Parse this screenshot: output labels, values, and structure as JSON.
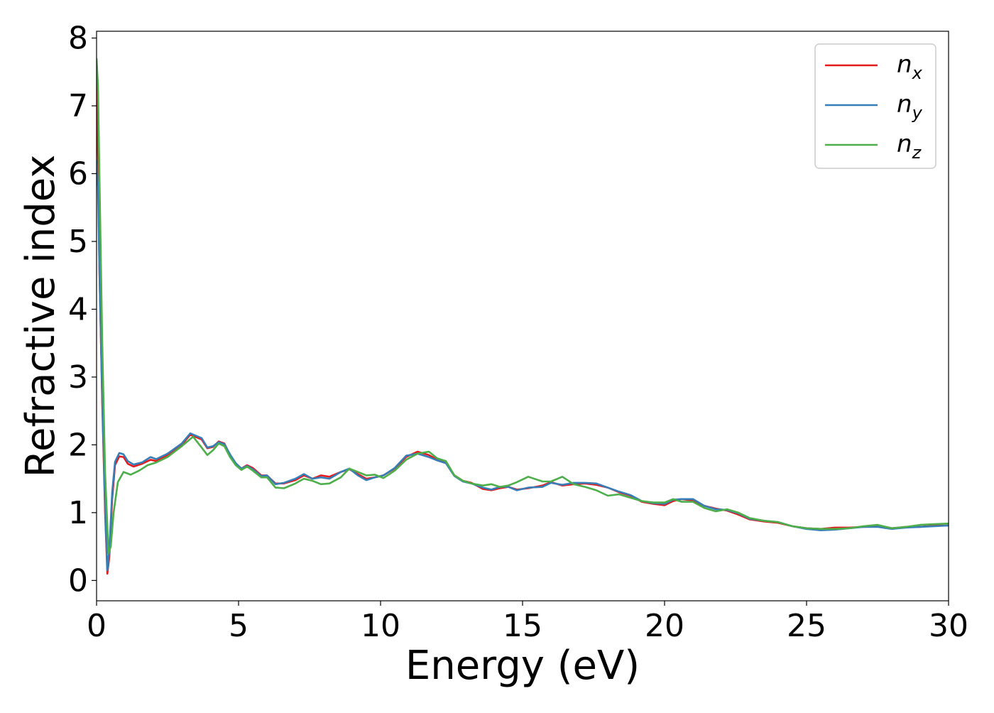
{
  "chart_data": {
    "type": "line",
    "xlabel": "Energy (eV)",
    "ylabel": "Refractive index",
    "xlim": [
      0,
      30
    ],
    "ylim": [
      -0.3,
      8.1
    ],
    "xticks": [
      "0",
      "5",
      "10",
      "15",
      "20",
      "25",
      "30"
    ],
    "yticks": [
      "0",
      "1",
      "2",
      "3",
      "4",
      "5",
      "6",
      "7",
      "8"
    ],
    "grid": false,
    "legend_position": "top-right",
    "series": [
      {
        "name": "n_x",
        "legend_base": "n",
        "legend_sub": "x",
        "color": "#e41a1c",
        "points": [
          [
            0,
            7.6
          ],
          [
            0.05,
            6.2
          ],
          [
            0.1,
            4.6
          ],
          [
            0.2,
            2.6
          ],
          [
            0.3,
            1.0
          ],
          [
            0.38,
            0.1
          ],
          [
            0.45,
            0.35
          ],
          [
            0.55,
            1.2
          ],
          [
            0.65,
            1.7
          ],
          [
            0.8,
            1.83
          ],
          [
            0.95,
            1.82
          ],
          [
            1.1,
            1.72
          ],
          [
            1.3,
            1.68
          ],
          [
            1.6,
            1.72
          ],
          [
            1.9,
            1.78
          ],
          [
            2.1,
            1.76
          ],
          [
            2.5,
            1.85
          ],
          [
            3.0,
            2.0
          ],
          [
            3.3,
            2.15
          ],
          [
            3.7,
            2.08
          ],
          [
            3.9,
            1.95
          ],
          [
            4.1,
            1.97
          ],
          [
            4.3,
            2.05
          ],
          [
            4.5,
            2.02
          ],
          [
            4.7,
            1.85
          ],
          [
            4.9,
            1.72
          ],
          [
            5.1,
            1.65
          ],
          [
            5.3,
            1.7
          ],
          [
            5.5,
            1.66
          ],
          [
            5.8,
            1.55
          ],
          [
            6.0,
            1.55
          ],
          [
            6.3,
            1.43
          ],
          [
            6.6,
            1.43
          ],
          [
            7.0,
            1.48
          ],
          [
            7.3,
            1.55
          ],
          [
            7.6,
            1.5
          ],
          [
            7.9,
            1.55
          ],
          [
            8.2,
            1.53
          ],
          [
            8.6,
            1.6
          ],
          [
            8.9,
            1.64
          ],
          [
            9.2,
            1.57
          ],
          [
            9.5,
            1.5
          ],
          [
            9.8,
            1.52
          ],
          [
            10.1,
            1.55
          ],
          [
            10.5,
            1.65
          ],
          [
            10.9,
            1.82
          ],
          [
            11.3,
            1.9
          ],
          [
            11.7,
            1.85
          ],
          [
            12.0,
            1.78
          ],
          [
            12.3,
            1.74
          ],
          [
            12.6,
            1.55
          ],
          [
            12.9,
            1.47
          ],
          [
            13.2,
            1.44
          ],
          [
            13.6,
            1.35
          ],
          [
            13.9,
            1.33
          ],
          [
            14.2,
            1.36
          ],
          [
            14.5,
            1.38
          ],
          [
            14.8,
            1.34
          ],
          [
            15.2,
            1.36
          ],
          [
            15.7,
            1.4
          ],
          [
            16.0,
            1.45
          ],
          [
            16.4,
            1.4
          ],
          [
            16.8,
            1.42
          ],
          [
            17.2,
            1.43
          ],
          [
            17.6,
            1.41
          ],
          [
            18.0,
            1.37
          ],
          [
            18.4,
            1.3
          ],
          [
            18.8,
            1.25
          ],
          [
            19.2,
            1.16
          ],
          [
            19.6,
            1.13
          ],
          [
            20.0,
            1.11
          ],
          [
            20.3,
            1.17
          ],
          [
            20.6,
            1.2
          ],
          [
            21.0,
            1.18
          ],
          [
            21.4,
            1.1
          ],
          [
            21.8,
            1.06
          ],
          [
            22.2,
            1.03
          ],
          [
            22.6,
            0.97
          ],
          [
            23.0,
            0.9
          ],
          [
            23.5,
            0.87
          ],
          [
            24.0,
            0.85
          ],
          [
            24.5,
            0.8
          ],
          [
            25.0,
            0.77
          ],
          [
            25.5,
            0.76
          ],
          [
            26.0,
            0.78
          ],
          [
            26.5,
            0.78
          ],
          [
            27.0,
            0.79
          ],
          [
            27.5,
            0.8
          ],
          [
            28.0,
            0.77
          ],
          [
            28.5,
            0.79
          ],
          [
            29.0,
            0.79
          ],
          [
            29.5,
            0.81
          ],
          [
            30.0,
            0.81
          ]
        ]
      },
      {
        "name": "n_y",
        "legend_base": "n",
        "legend_sub": "y",
        "color": "#377eb8",
        "points": [
          [
            0,
            6.2
          ],
          [
            0.05,
            5.8
          ],
          [
            0.1,
            4.6
          ],
          [
            0.2,
            2.7
          ],
          [
            0.3,
            1.1
          ],
          [
            0.38,
            0.15
          ],
          [
            0.45,
            0.45
          ],
          [
            0.55,
            1.3
          ],
          [
            0.65,
            1.75
          ],
          [
            0.8,
            1.88
          ],
          [
            0.95,
            1.86
          ],
          [
            1.1,
            1.76
          ],
          [
            1.3,
            1.71
          ],
          [
            1.6,
            1.74
          ],
          [
            1.9,
            1.82
          ],
          [
            2.1,
            1.79
          ],
          [
            2.5,
            1.87
          ],
          [
            3.0,
            2.02
          ],
          [
            3.3,
            2.17
          ],
          [
            3.7,
            2.1
          ],
          [
            3.9,
            1.96
          ],
          [
            4.1,
            1.98
          ],
          [
            4.3,
            2.04
          ],
          [
            4.5,
            2.01
          ],
          [
            4.7,
            1.86
          ],
          [
            4.9,
            1.73
          ],
          [
            5.1,
            1.65
          ],
          [
            5.3,
            1.69
          ],
          [
            5.5,
            1.64
          ],
          [
            5.8,
            1.54
          ],
          [
            6.0,
            1.55
          ],
          [
            6.3,
            1.42
          ],
          [
            6.6,
            1.44
          ],
          [
            7.0,
            1.5
          ],
          [
            7.3,
            1.57
          ],
          [
            7.6,
            1.5
          ],
          [
            7.9,
            1.52
          ],
          [
            8.2,
            1.5
          ],
          [
            8.6,
            1.6
          ],
          [
            8.9,
            1.65
          ],
          [
            9.2,
            1.55
          ],
          [
            9.5,
            1.48
          ],
          [
            9.8,
            1.52
          ],
          [
            10.1,
            1.55
          ],
          [
            10.5,
            1.66
          ],
          [
            10.9,
            1.84
          ],
          [
            11.3,
            1.87
          ],
          [
            11.7,
            1.82
          ],
          [
            12.0,
            1.77
          ],
          [
            12.3,
            1.73
          ],
          [
            12.6,
            1.54
          ],
          [
            12.9,
            1.46
          ],
          [
            13.2,
            1.43
          ],
          [
            13.6,
            1.37
          ],
          [
            13.9,
            1.34
          ],
          [
            14.2,
            1.38
          ],
          [
            14.5,
            1.38
          ],
          [
            14.8,
            1.33
          ],
          [
            15.2,
            1.37
          ],
          [
            15.7,
            1.38
          ],
          [
            16.0,
            1.44
          ],
          [
            16.4,
            1.41
          ],
          [
            16.8,
            1.44
          ],
          [
            17.2,
            1.44
          ],
          [
            17.6,
            1.43
          ],
          [
            18.0,
            1.37
          ],
          [
            18.4,
            1.31
          ],
          [
            18.8,
            1.26
          ],
          [
            19.2,
            1.17
          ],
          [
            19.6,
            1.14
          ],
          [
            20.0,
            1.13
          ],
          [
            20.3,
            1.19
          ],
          [
            20.6,
            1.2
          ],
          [
            21.0,
            1.2
          ],
          [
            21.4,
            1.1
          ],
          [
            21.8,
            1.05
          ],
          [
            22.2,
            1.04
          ],
          [
            22.6,
            0.99
          ],
          [
            23.0,
            0.91
          ],
          [
            23.5,
            0.88
          ],
          [
            24.0,
            0.86
          ],
          [
            24.5,
            0.8
          ],
          [
            25.0,
            0.76
          ],
          [
            25.5,
            0.74
          ],
          [
            26.0,
            0.75
          ],
          [
            26.5,
            0.77
          ],
          [
            27.0,
            0.79
          ],
          [
            27.5,
            0.79
          ],
          [
            28.0,
            0.76
          ],
          [
            28.5,
            0.78
          ],
          [
            29.0,
            0.79
          ],
          [
            29.5,
            0.8
          ],
          [
            30.0,
            0.81
          ]
        ]
      },
      {
        "name": "n_z",
        "legend_base": "n",
        "legend_sub": "z",
        "color": "#4daf4a",
        "points": [
          [
            0,
            7.7
          ],
          [
            0.05,
            7.3
          ],
          [
            0.1,
            6.0
          ],
          [
            0.2,
            3.5
          ],
          [
            0.3,
            1.6
          ],
          [
            0.42,
            0.4
          ],
          [
            0.5,
            0.5
          ],
          [
            0.6,
            1.0
          ],
          [
            0.75,
            1.45
          ],
          [
            0.95,
            1.6
          ],
          [
            1.2,
            1.56
          ],
          [
            1.5,
            1.62
          ],
          [
            1.8,
            1.7
          ],
          [
            2.1,
            1.74
          ],
          [
            2.5,
            1.82
          ],
          [
            3.0,
            1.98
          ],
          [
            3.4,
            2.12
          ],
          [
            3.7,
            1.96
          ],
          [
            3.9,
            1.85
          ],
          [
            4.1,
            1.92
          ],
          [
            4.3,
            2.02
          ],
          [
            4.5,
            1.98
          ],
          [
            4.7,
            1.82
          ],
          [
            4.9,
            1.7
          ],
          [
            5.1,
            1.63
          ],
          [
            5.3,
            1.68
          ],
          [
            5.5,
            1.62
          ],
          [
            5.8,
            1.52
          ],
          [
            6.0,
            1.52
          ],
          [
            6.3,
            1.37
          ],
          [
            6.6,
            1.36
          ],
          [
            7.0,
            1.43
          ],
          [
            7.3,
            1.5
          ],
          [
            7.6,
            1.47
          ],
          [
            7.9,
            1.42
          ],
          [
            8.2,
            1.43
          ],
          [
            8.6,
            1.52
          ],
          [
            8.9,
            1.65
          ],
          [
            9.2,
            1.6
          ],
          [
            9.5,
            1.55
          ],
          [
            9.8,
            1.56
          ],
          [
            10.1,
            1.51
          ],
          [
            10.5,
            1.62
          ],
          [
            10.9,
            1.78
          ],
          [
            11.3,
            1.87
          ],
          [
            11.7,
            1.9
          ],
          [
            12.0,
            1.8
          ],
          [
            12.3,
            1.76
          ],
          [
            12.6,
            1.55
          ],
          [
            12.9,
            1.47
          ],
          [
            13.2,
            1.43
          ],
          [
            13.6,
            1.4
          ],
          [
            13.9,
            1.42
          ],
          [
            14.2,
            1.38
          ],
          [
            14.5,
            1.4
          ],
          [
            14.8,
            1.45
          ],
          [
            15.2,
            1.53
          ],
          [
            15.7,
            1.46
          ],
          [
            16.0,
            1.46
          ],
          [
            16.4,
            1.53
          ],
          [
            16.8,
            1.42
          ],
          [
            17.2,
            1.38
          ],
          [
            17.6,
            1.33
          ],
          [
            18.0,
            1.25
          ],
          [
            18.4,
            1.27
          ],
          [
            18.8,
            1.22
          ],
          [
            19.2,
            1.17
          ],
          [
            19.6,
            1.15
          ],
          [
            20.0,
            1.15
          ],
          [
            20.3,
            1.2
          ],
          [
            20.6,
            1.16
          ],
          [
            21.0,
            1.16
          ],
          [
            21.4,
            1.07
          ],
          [
            21.8,
            1.02
          ],
          [
            22.2,
            1.05
          ],
          [
            22.6,
            1.0
          ],
          [
            23.0,
            0.92
          ],
          [
            23.5,
            0.88
          ],
          [
            24.0,
            0.86
          ],
          [
            24.5,
            0.8
          ],
          [
            25.0,
            0.77
          ],
          [
            25.5,
            0.76
          ],
          [
            26.0,
            0.76
          ],
          [
            26.5,
            0.77
          ],
          [
            27.0,
            0.8
          ],
          [
            27.5,
            0.82
          ],
          [
            28.0,
            0.77
          ],
          [
            28.5,
            0.79
          ],
          [
            29.0,
            0.82
          ],
          [
            29.5,
            0.83
          ],
          [
            30.0,
            0.84
          ]
        ]
      }
    ]
  }
}
